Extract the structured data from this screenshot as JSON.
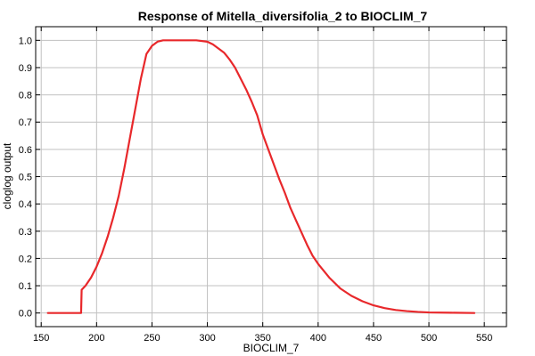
{
  "chart_data": {
    "type": "line",
    "title": "Response of Mitella_diversifolia_2 to BIOCLIM_7",
    "xlabel": "BIOCLIM_7",
    "ylabel": "cloglog output",
    "xlim": [
      145,
      570
    ],
    "ylim": [
      -0.05,
      1.05
    ],
    "xticks": [
      150,
      200,
      250,
      300,
      350,
      400,
      450,
      500,
      550
    ],
    "yticks": [
      0.0,
      0.1,
      0.2,
      0.3,
      0.4,
      0.5,
      0.6,
      0.7,
      0.8,
      0.9,
      1.0
    ],
    "xtick_labels": [
      "150",
      "200",
      "250",
      "300",
      "350",
      "400",
      "450",
      "500",
      "550"
    ],
    "ytick_labels": [
      "0.0",
      "0.1",
      "0.2",
      "0.3",
      "0.4",
      "0.5",
      "0.6",
      "0.7",
      "0.8",
      "0.9",
      "1.0"
    ],
    "grid": true,
    "series": [
      {
        "color": "#e8282b",
        "x": [
          156,
          170,
          186,
          186.5,
          190,
          195,
          200,
          205,
          210,
          215,
          220,
          225,
          230,
          235,
          240,
          245,
          250,
          255,
          260,
          270,
          280,
          290,
          300,
          305,
          310,
          315,
          320,
          325,
          330,
          335,
          340,
          345,
          350,
          355,
          360,
          365,
          370,
          375,
          380,
          385,
          390,
          395,
          400,
          410,
          420,
          430,
          440,
          450,
          460,
          470,
          480,
          490,
          500,
          520,
          541
        ],
        "y": [
          0.0,
          0.0,
          0.0,
          0.085,
          0.1,
          0.13,
          0.17,
          0.22,
          0.28,
          0.35,
          0.43,
          0.53,
          0.64,
          0.75,
          0.86,
          0.95,
          0.98,
          0.995,
          1.0,
          1.0,
          1.0,
          1.0,
          0.995,
          0.985,
          0.97,
          0.955,
          0.93,
          0.9,
          0.86,
          0.82,
          0.775,
          0.725,
          0.655,
          0.6,
          0.545,
          0.49,
          0.44,
          0.385,
          0.34,
          0.295,
          0.25,
          0.21,
          0.18,
          0.13,
          0.09,
          0.063,
          0.043,
          0.028,
          0.018,
          0.011,
          0.007,
          0.004,
          0.002,
          0.001,
          0.0
        ]
      }
    ]
  }
}
